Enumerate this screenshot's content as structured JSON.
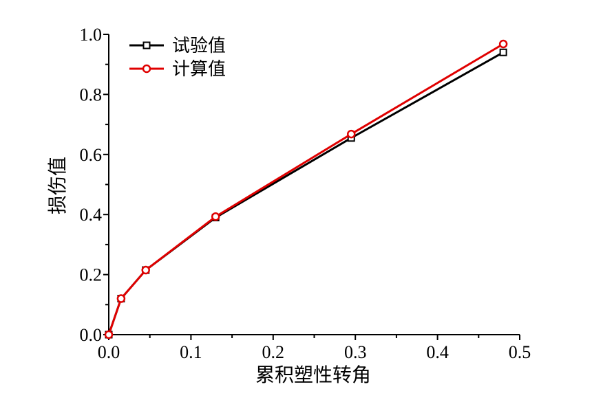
{
  "chart_data": {
    "type": "line",
    "xlabel": "累积塑性转角",
    "ylabel": "损伤值",
    "xlim": [
      0,
      0.5
    ],
    "ylim": [
      0,
      1.0
    ],
    "x_ticks": [
      "0.0",
      "0.1",
      "0.2",
      "0.3",
      "0.4",
      "0.5"
    ],
    "y_ticks": [
      "0.0",
      "0.2",
      "0.4",
      "0.6",
      "0.8",
      "1.0"
    ],
    "legend_position": "top-left",
    "grid": false,
    "series": [
      {
        "name": "试验值",
        "color": "#000000",
        "marker": "square",
        "x": [
          0.0,
          0.015,
          0.045,
          0.13,
          0.295,
          0.48
        ],
        "y": [
          0.0,
          0.12,
          0.215,
          0.39,
          0.655,
          0.94
        ]
      },
      {
        "name": "计算值",
        "color": "#e00000",
        "marker": "circle",
        "x": [
          0.0,
          0.015,
          0.045,
          0.13,
          0.295,
          0.48
        ],
        "y": [
          0.0,
          0.12,
          0.215,
          0.393,
          0.668,
          0.968
        ]
      }
    ]
  }
}
